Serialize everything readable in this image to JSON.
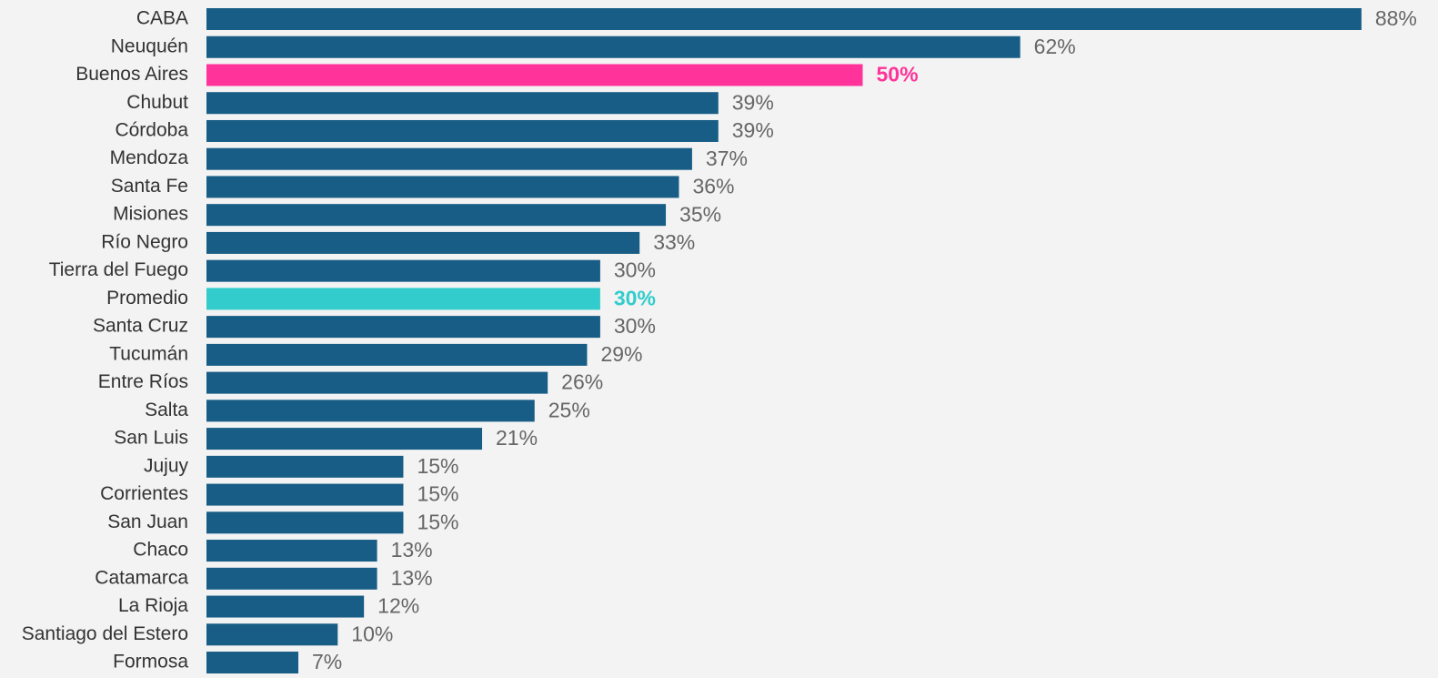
{
  "chart_data": {
    "type": "bar",
    "orientation": "horizontal",
    "categories": [
      "CABA",
      "Neuquén",
      "Buenos Aires",
      "Chubut",
      "Córdoba",
      "Mendoza",
      "Santa Fe",
      "Misiones",
      "Río Negro",
      "Tierra del Fuego",
      "Promedio",
      "Santa Cruz",
      "Tucumán",
      "Entre Ríos",
      "Salta",
      "San Luis",
      "Jujuy",
      "Corrientes",
      "San Juan",
      "Chaco",
      "Catamarca",
      "La Rioja",
      "Santiago del Estero",
      "Formosa"
    ],
    "values": [
      88,
      62,
      50,
      39,
      39,
      37,
      36,
      35,
      33,
      30,
      30,
      30,
      29,
      26,
      25,
      21,
      15,
      15,
      15,
      13,
      13,
      12,
      10,
      7
    ],
    "value_labels": [
      "88%",
      "62%",
      "50%",
      "39%",
      "39%",
      "37%",
      "36%",
      "35%",
      "33%",
      "30%",
      "30%",
      "30%",
      "29%",
      "26%",
      "25%",
      "21%",
      "15%",
      "15%",
      "15%",
      "13%",
      "13%",
      "12%",
      "10%",
      "7%"
    ],
    "colors": [
      "#175d85",
      "#175d85",
      "#ff3399",
      "#175d85",
      "#175d85",
      "#175d85",
      "#175d85",
      "#175d85",
      "#175d85",
      "#175d85",
      "#33cccc",
      "#175d85",
      "#175d85",
      "#175d85",
      "#175d85",
      "#175d85",
      "#175d85",
      "#175d85",
      "#175d85",
      "#175d85",
      "#175d85",
      "#175d85",
      "#175d85",
      "#175d85"
    ],
    "label_colors": [
      "#666666",
      "#666666",
      "#ff3399",
      "#666666",
      "#666666",
      "#666666",
      "#666666",
      "#666666",
      "#666666",
      "#666666",
      "#33cccc",
      "#666666",
      "#666666",
      "#666666",
      "#666666",
      "#666666",
      "#666666",
      "#666666",
      "#666666",
      "#666666",
      "#666666",
      "#666666",
      "#666666",
      "#666666"
    ]
  }
}
